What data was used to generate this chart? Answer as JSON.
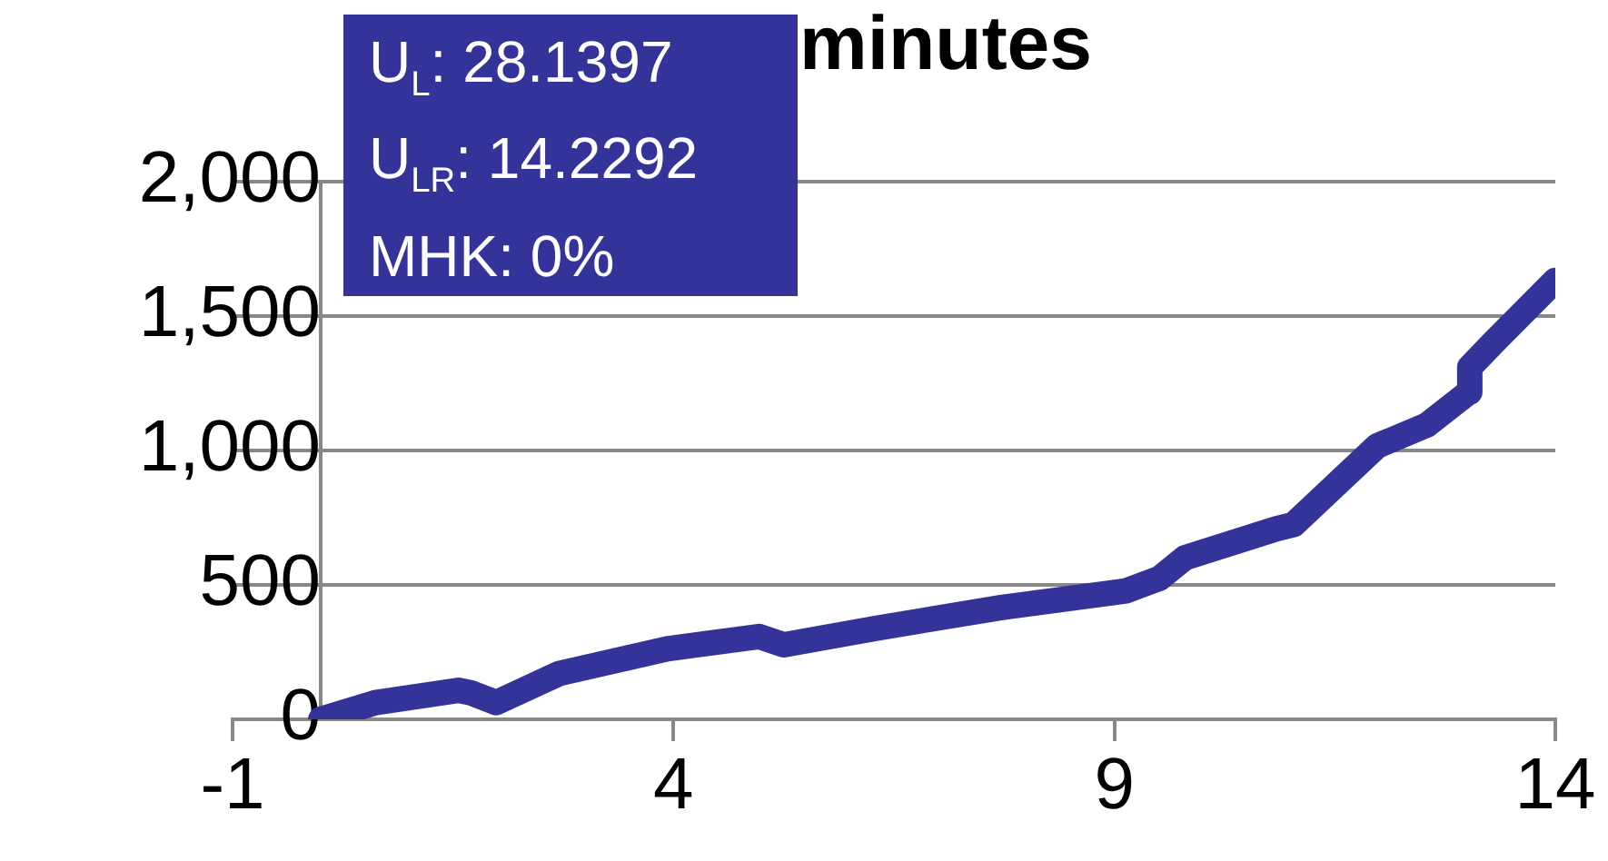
{
  "chart_data": {
    "type": "line",
    "title": "minutes",
    "annotations": [
      "U$_{L}$: 28.1397",
      "U$_{LR}$: 14.2292",
      "MHK: 0%"
    ],
    "x": [
      0,
      0.62,
      1.56,
      1.7,
      1.99,
      2.7,
      3.93,
      4.97,
      5.25,
      6.3,
      7.72,
      9.13,
      9.51,
      9.8,
      10.84,
      11.03,
      11.98,
      12.54,
      13.02,
      13.03,
      13.3,
      14
    ],
    "series": [
      {
        "color": "#333399",
        "values": [
          0,
          62,
          108,
          99,
          62,
          170,
          262,
          308,
          277,
          339,
          416,
          478,
          524,
          601,
          709,
          724,
          1017,
          1094,
          1217,
          1310,
          1402,
          1633
        ]
      }
    ],
    "xlim": [
      -1,
      14
    ],
    "xticks": [
      -1,
      4,
      9,
      14
    ],
    "ylim": [
      0,
      2000
    ],
    "yticks": [
      0,
      {
        "value": 500,
        "label": "500"
      },
      {
        "value": 1000,
        "label": "1,000"
      },
      {
        "value": 1500,
        "label": "1,500"
      },
      {
        "value": 2000,
        "label": "2,000"
      }
    ],
    "grid": "y",
    "legend": false,
    "marker": "none",
    "line_style": "solid"
  }
}
